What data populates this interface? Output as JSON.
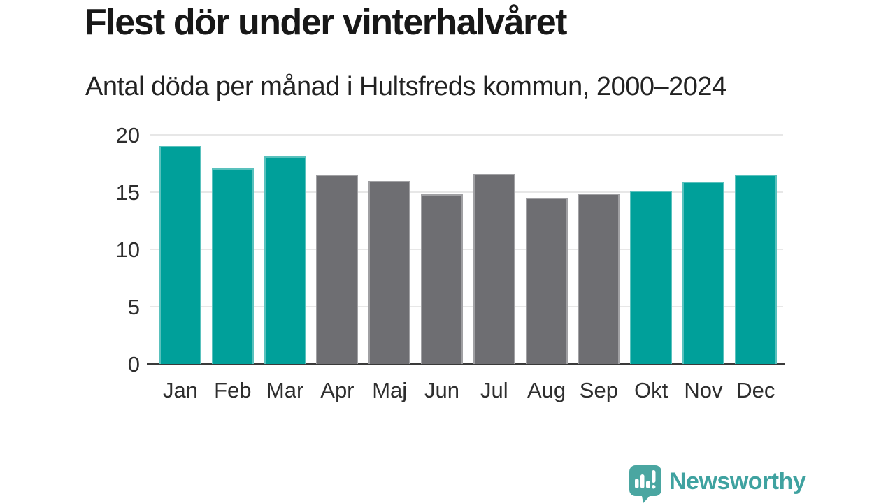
{
  "chart_data": {
    "type": "bar",
    "title": "Flest dör under vinterhalvåret",
    "subtitle": "Antal döda per månad i Hultsfreds kommun, 2000–2024",
    "categories": [
      "Jan",
      "Feb",
      "Mar",
      "Apr",
      "Maj",
      "Jun",
      "Jul",
      "Aug",
      "Sep",
      "Okt",
      "Nov",
      "Dec"
    ],
    "values": [
      19.0,
      17.1,
      18.1,
      16.5,
      16.0,
      14.8,
      16.6,
      14.5,
      14.9,
      15.1,
      15.9,
      16.5
    ],
    "bar_colors": [
      "teal",
      "teal",
      "teal",
      "gray",
      "gray",
      "gray",
      "gray",
      "gray",
      "gray",
      "teal",
      "teal",
      "teal"
    ],
    "colors": {
      "teal": "#00a09a",
      "gray": "#6e6e72"
    },
    "xlabel": "",
    "ylabel": "",
    "ylim": [
      0,
      20
    ],
    "yticks": [
      0,
      5,
      10,
      15,
      20
    ],
    "grid": true,
    "legend": "none"
  },
  "footer": {
    "logo_text": "Newsworthy",
    "logo_icon": "bar-chart-speech-bubble-icon"
  },
  "theme": {
    "accent_teal": "#00a09a",
    "neutral_gray": "#6e6e72",
    "logo_teal": "#4aa6a1",
    "grid_color": "#e7e7e7",
    "axis_color": "#3a3a3a",
    "text_color": "#1c1c1c"
  }
}
